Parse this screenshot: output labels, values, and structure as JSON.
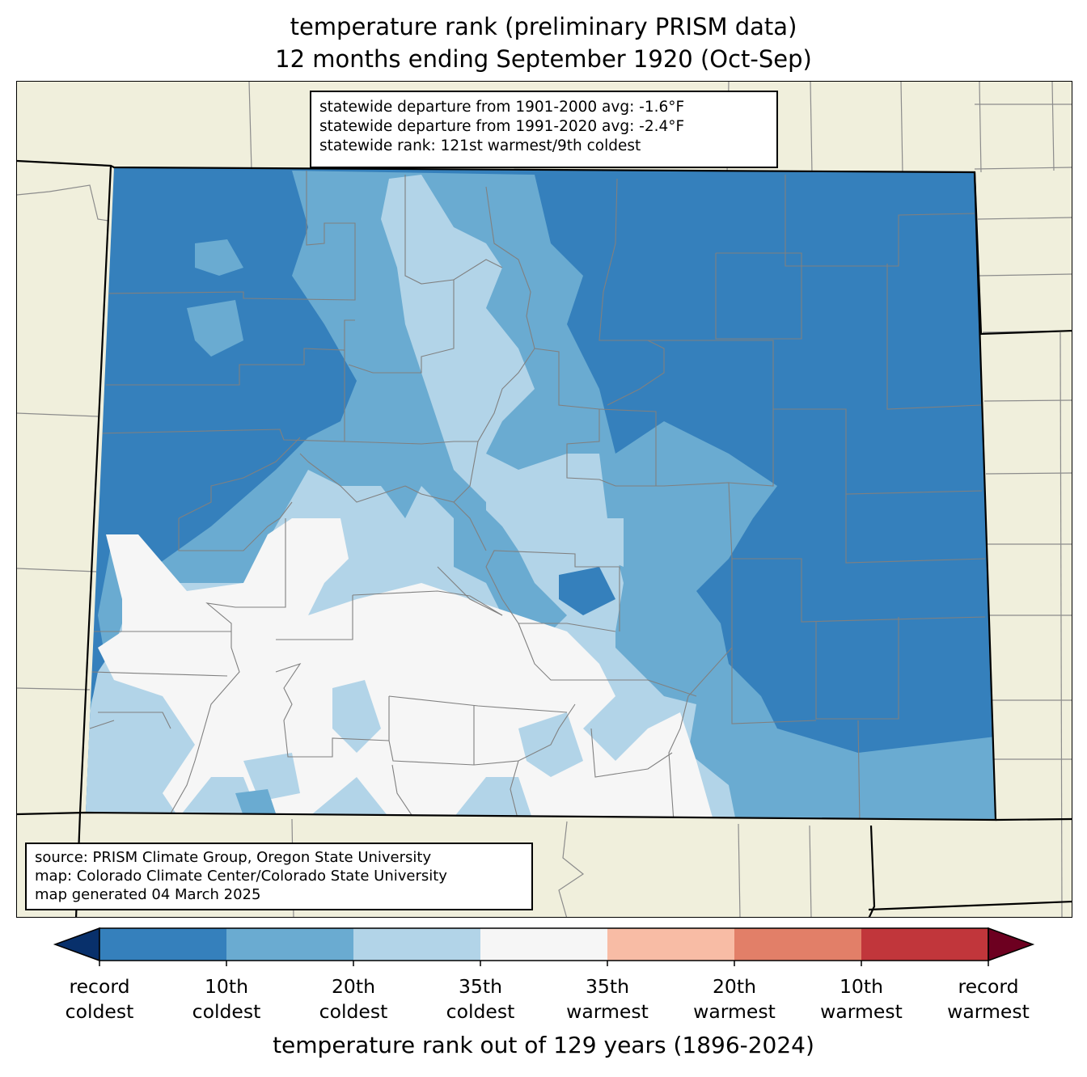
{
  "title_line1": "temperature rank (preliminary PRISM data)",
  "title_line2": "12 months ending September 1920 (Oct-Sep)",
  "stats": {
    "line1": "statewide departure from 1901-2000 avg: -1.6°F",
    "line2": "statewide departure from 1991-2020 avg: -2.4°F",
    "line3": "statewide rank: 121st warmest/9th coldest"
  },
  "source": {
    "line1": "source: PRISM Climate Group, Oregon State University",
    "line2": "map: Colorado Climate Center/Colorado State University",
    "line3": "map generated 04 March 2025"
  },
  "colorbar": {
    "xlabel": "temperature rank out of 129 years (1896-2024)",
    "ticks": [
      {
        "l1": "record",
        "l2": "coldest"
      },
      {
        "l1": "10th",
        "l2": "coldest"
      },
      {
        "l1": "20th",
        "l2": "coldest"
      },
      {
        "l1": "35th",
        "l2": "coldest"
      },
      {
        "l1": "35th",
        "l2": "warmest"
      },
      {
        "l1": "20th",
        "l2": "warmest"
      },
      {
        "l1": "10th",
        "l2": "warmest"
      },
      {
        "l1": "record",
        "l2": "warmest"
      }
    ],
    "colors": [
      "#08306b",
      "#3580bc",
      "#6aabd1",
      "#b2d4e8",
      "#f6f6f6",
      "#f8bca5",
      "#e27f68",
      "#c1363b",
      "#6d0020"
    ]
  },
  "map_colors": {
    "background": "#f0efdc",
    "record_to_10th_coldest": "#3580bc",
    "10th_to_20th_coldest": "#6aabd1",
    "20th_to_35th_coldest": "#b2d4e8",
    "near_normal": "#f6f6f6",
    "county_lines": "#888888",
    "state_lines": "#000000"
  }
}
